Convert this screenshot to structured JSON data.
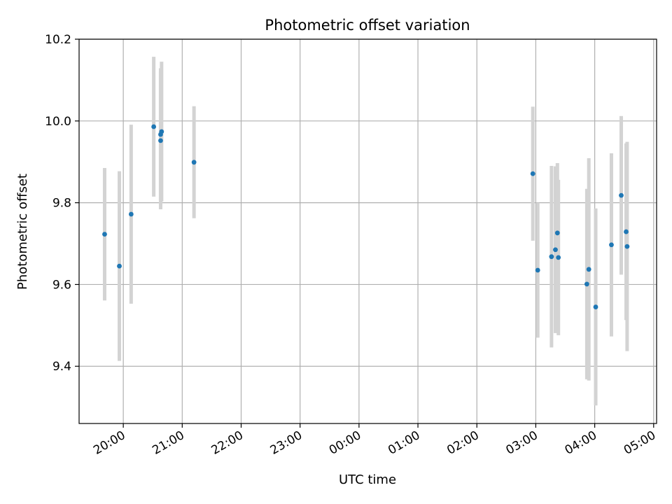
{
  "chart_data": {
    "type": "scatter",
    "title": "Photometric offset variation",
    "xlabel": "UTC time",
    "ylabel": "Photometric offset",
    "xlim": [
      "19:15",
      "05:03"
    ],
    "ylim": [
      9.26,
      10.2
    ],
    "x_ticks": [
      "20:00",
      "21:00",
      "22:00",
      "23:00",
      "00:00",
      "01:00",
      "02:00",
      "03:00",
      "04:00",
      "05:00"
    ],
    "y_ticks": [
      9.4,
      9.6,
      9.8,
      10.0,
      10.2
    ],
    "y_tick_labels": [
      "9.4",
      "9.6",
      "9.8",
      "10.0",
      "10.2"
    ],
    "grid": true,
    "series": [
      {
        "marker_color": "#1f77b4",
        "errorbar_color": "#d3d3d3",
        "points": [
          {
            "x": "19:41",
            "y": 9.723,
            "err": 0.162
          },
          {
            "x": "19:56",
            "y": 9.645,
            "err": 0.232
          },
          {
            "x": "20:08",
            "y": 9.772,
            "err": 0.219
          },
          {
            "x": "20:31",
            "y": 9.986,
            "err": 0.171
          },
          {
            "x": "20:38",
            "y": 9.952,
            "err": 0.168
          },
          {
            "x": "20:38",
            "y": 9.967,
            "err": 0.162
          },
          {
            "x": "20:39",
            "y": 9.974,
            "err": 0.171
          },
          {
            "x": "21:12",
            "y": 9.899,
            "err": 0.137
          },
          {
            "x": "02:57",
            "y": 9.871,
            "err": 0.164
          },
          {
            "x": "03:02",
            "y": 9.635,
            "err": 0.165
          },
          {
            "x": "03:16",
            "y": 9.668,
            "err": 0.222
          },
          {
            "x": "03:20",
            "y": 9.685,
            "err": 0.204
          },
          {
            "x": "03:22",
            "y": 9.726,
            "err": 0.171
          },
          {
            "x": "03:23",
            "y": 9.666,
            "err": 0.19
          },
          {
            "x": "03:52",
            "y": 9.601,
            "err": 0.233
          },
          {
            "x": "03:54",
            "y": 9.637,
            "err": 0.272
          },
          {
            "x": "04:01",
            "y": 9.545,
            "err": 0.241
          },
          {
            "x": "04:17",
            "y": 9.697,
            "err": 0.224
          },
          {
            "x": "04:27",
            "y": 9.818,
            "err": 0.194
          },
          {
            "x": "04:32",
            "y": 9.729,
            "err": 0.216
          },
          {
            "x": "04:33",
            "y": 9.693,
            "err": 0.256
          }
        ]
      }
    ]
  }
}
